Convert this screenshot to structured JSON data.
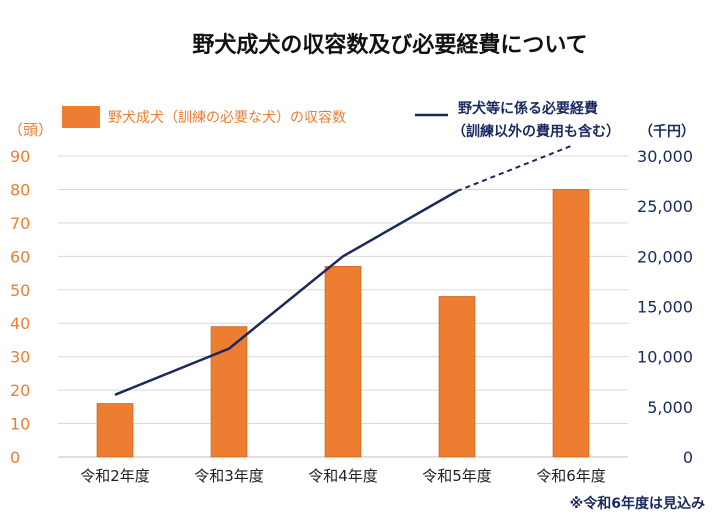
{
  "chart_data": {
    "type": "bar",
    "title": "野犬成犬の収容数及び必要経費について",
    "categories": [
      "令和2年度",
      "令和3年度",
      "令和4年度",
      "令和5年度",
      "令和6年度"
    ],
    "series": [
      {
        "name": "野犬成犬（訓練の必要な犬）の収容数",
        "type": "bar",
        "axis": "left",
        "color": "#ed7d31",
        "values": [
          16,
          39,
          57,
          48,
          80
        ]
      },
      {
        "name_lines": [
          "野犬等に係る必要経費",
          "（訓練以外の費用も含む）"
        ],
        "type": "line",
        "axis": "right",
        "color": "#1a2a5e",
        "values": [
          6200,
          10800,
          20000,
          26500,
          31000
        ],
        "estimated_from_index": 3
      }
    ],
    "left_axis": {
      "unit": "（頭）",
      "min": 0,
      "max": 90,
      "ticks": [
        0,
        10,
        20,
        30,
        40,
        50,
        60,
        70,
        80,
        90
      ]
    },
    "right_axis": {
      "unit": "（千円）",
      "min": 0,
      "max": 30000,
      "ticks": [
        "0",
        "5,000",
        "10,000",
        "15,000",
        "20,000",
        "25,000",
        "30,000"
      ]
    },
    "grid": true,
    "legend_position": "top",
    "footnote": "※令和6年度は見込み"
  }
}
